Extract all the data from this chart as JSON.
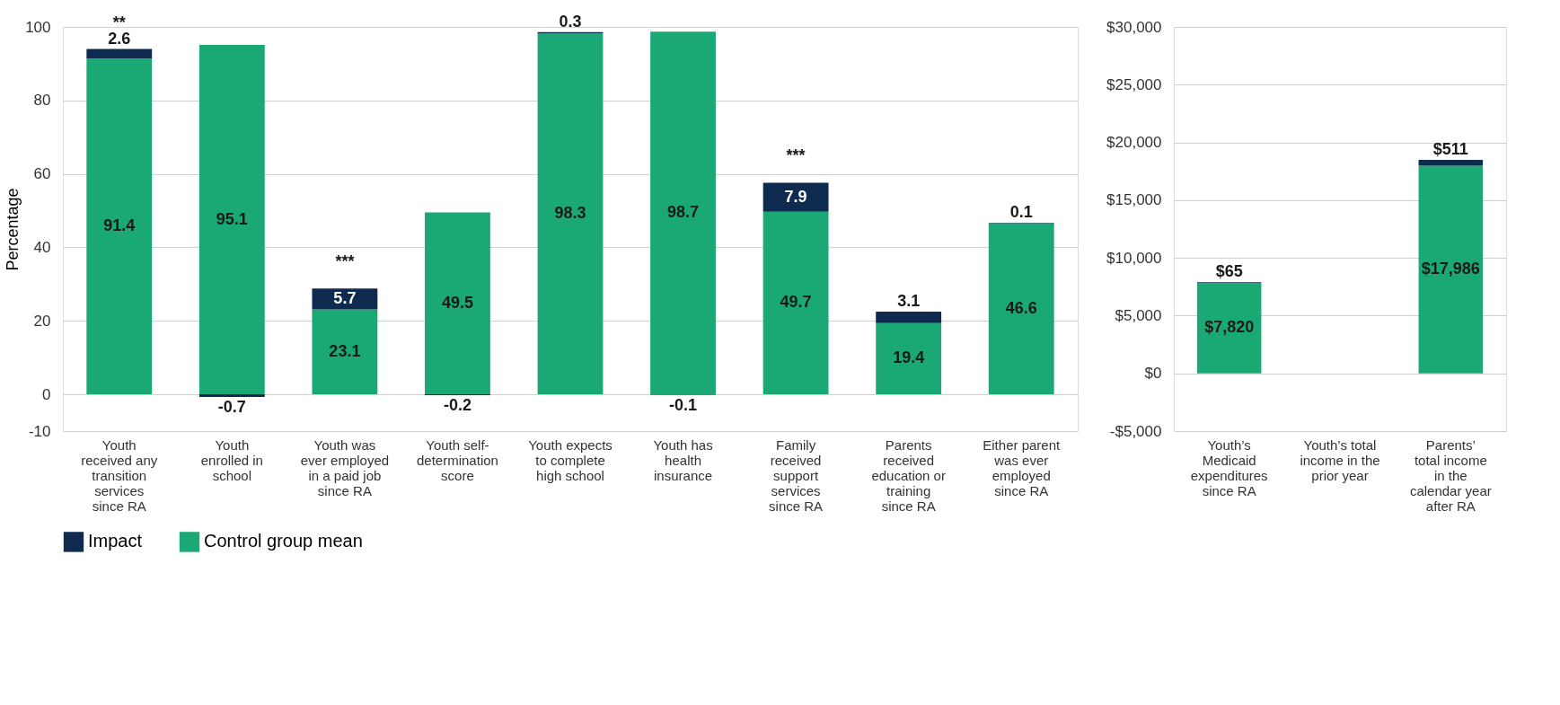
{
  "chart_data": [
    {
      "type": "bar",
      "stacked": true,
      "ylabel": "Percentage",
      "categories": [
        "Youth received any transition services since RA",
        "Youth enrolled in school",
        "Youth was ever employed in a paid job since RA",
        "Youth self-determination score",
        "Youth expects to complete high school",
        "Youth has health insurance",
        "Family received support services since RA",
        "Parents received education or training since RA",
        "Either parent was ever employed since RA"
      ],
      "series": [
        {
          "name": "Control group mean",
          "color": "#1aa874",
          "values": [
            91.4,
            95.1,
            23.1,
            49.5,
            98.3,
            98.7,
            49.7,
            19.4,
            46.6
          ]
        },
        {
          "name": "Impact",
          "color": "#0e2a4e",
          "values": [
            2.6,
            -0.7,
            5.7,
            -0.2,
            0.3,
            -0.1,
            7.9,
            3.1,
            0.1
          ]
        }
      ],
      "data_labels": true,
      "ylim": [
        -10,
        100
      ],
      "yticks": [
        -10,
        0,
        20,
        40,
        60,
        80,
        100
      ],
      "grid": "y",
      "legend": "bottom",
      "annotations": [
        {
          "text": "**",
          "x": "Youth received any transition services since RA",
          "y": 94.0
        },
        {
          "text": "***",
          "x": "Youth was ever employed in a paid job since RA",
          "y": 28.8
        },
        {
          "text": "***",
          "x": "Family received support services since RA",
          "y": 57.6
        }
      ]
    },
    {
      "type": "bar",
      "stacked": true,
      "categories": [
        "Youth’s Medicaid expenditures since RA",
        "Youth’s total income in the prior year",
        "Parents’ total income in the calendar year after RA"
      ],
      "series": [
        {
          "color": "#1aa874",
          "values": [
            7820,
            null,
            17986
          ],
          "value_labels": [
            "$7,820",
            null,
            "$17,986"
          ]
        },
        {
          "color": "#0e2a4e",
          "values": [
            65,
            null,
            511
          ],
          "value_labels": [
            "$65",
            null,
            "$511"
          ]
        }
      ],
      "ylim": [
        -5000,
        30000
      ],
      "yticks": [
        {
          "value": -5000,
          "label": "-$5,000"
        },
        {
          "value": 0,
          "label": "$0"
        },
        {
          "value": 5000,
          "label": "$5,000"
        },
        {
          "value": 10000,
          "label": "$10,000"
        },
        {
          "value": 15000,
          "label": "$15,000"
        },
        {
          "value": 20000,
          "label": "$20,000"
        },
        {
          "value": 25000,
          "label": "$25,000"
        },
        {
          "value": 30000,
          "label": "$30,000"
        }
      ],
      "grid": "y",
      "legend": false
    }
  ]
}
